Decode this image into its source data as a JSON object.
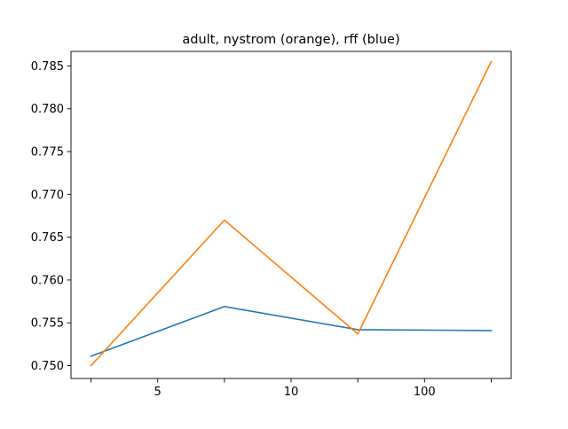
{
  "chart_data": {
    "type": "line",
    "title": "adult, nystrom (orange), rff (blue)",
    "xlabel": "",
    "ylabel": "",
    "x": [
      1,
      2,
      3,
      4
    ],
    "x_ticks": [
      {
        "position": 1,
        "label": ""
      },
      {
        "position": 1.5,
        "label": "5"
      },
      {
        "position": 2,
        "label": ""
      },
      {
        "position": 2.5,
        "label": "10"
      },
      {
        "position": 3,
        "label": ""
      },
      {
        "position": 3.5,
        "label": "100"
      },
      {
        "position": 4,
        "label": ""
      }
    ],
    "ylim": [
      0.7485,
      0.7867
    ],
    "y_ticks": [
      0.75,
      0.755,
      0.76,
      0.765,
      0.77,
      0.775,
      0.78,
      0.785
    ],
    "y_tick_labels": [
      "0.750",
      "0.755",
      "0.760",
      "0.765",
      "0.770",
      "0.775",
      "0.780",
      "0.785"
    ],
    "grid": false,
    "series": [
      {
        "color": "#1f77b4",
        "values": [
          0.7511,
          0.7569,
          0.7542,
          0.7541
        ]
      },
      {
        "color": "#ff7f0e",
        "values": [
          0.75,
          0.767,
          0.7537,
          0.7855
        ]
      }
    ]
  }
}
